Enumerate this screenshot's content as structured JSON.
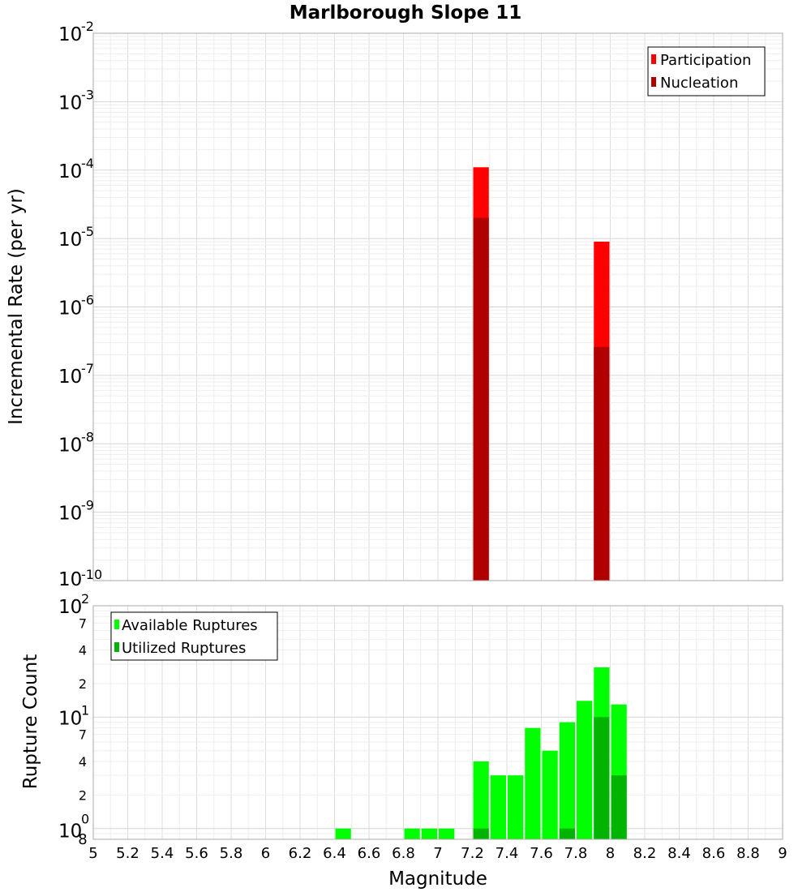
{
  "chart_data": [
    {
      "type": "bar",
      "title": "Marlborough Slope 11",
      "ylabel": "Incremental Rate (per yr)",
      "yscale": "log",
      "ylim": [
        1e-10,
        0.01
      ],
      "xlim": [
        5,
        9
      ],
      "y_ticks": [
        {
          "base": "10",
          "exp": "-2"
        },
        {
          "base": "10",
          "exp": "-3"
        },
        {
          "base": "10",
          "exp": "-4"
        },
        {
          "base": "10",
          "exp": "-5"
        },
        {
          "base": "10",
          "exp": "-6"
        },
        {
          "base": "10",
          "exp": "-7"
        },
        {
          "base": "10",
          "exp": "-8"
        },
        {
          "base": "10",
          "exp": "-9"
        },
        {
          "base": "10",
          "exp": "-10"
        }
      ],
      "grid": true,
      "legend_position": "top-right",
      "series": [
        {
          "name": "Participation",
          "color": "#ff0000",
          "points": [
            {
              "x": 7.25,
              "y": 0.00011
            },
            {
              "x": 7.95,
              "y": 9e-06
            }
          ]
        },
        {
          "name": "Nucleation",
          "color": "#b00000",
          "points": [
            {
              "x": 7.25,
              "y": 2e-05
            },
            {
              "x": 7.95,
              "y": 2.6e-07
            }
          ]
        }
      ]
    },
    {
      "type": "bar",
      "xlabel": "Magnitude",
      "ylabel": "Rupture Count",
      "yscale": "log",
      "ylim": [
        0.8,
        100
      ],
      "xlim": [
        5,
        9
      ],
      "x_ticks": [
        "5",
        "5.2",
        "5.4",
        "5.6",
        "5.8",
        "6",
        "6.2",
        "6.4",
        "6.6",
        "6.8",
        "7",
        "7.2",
        "7.4",
        "7.6",
        "7.8",
        "8",
        "8.2",
        "8.4",
        "8.6",
        "8.8",
        "9"
      ],
      "y_ticks": [
        {
          "base": "10",
          "exp": "2",
          "value": 100
        },
        {
          "base": "10",
          "exp": "1",
          "value": 10
        },
        {
          "base": "10",
          "exp": "0",
          "value": 1
        }
      ],
      "y_minor_ticks": [
        {
          "label": "7",
          "value": 70
        },
        {
          "label": "4",
          "value": 40
        },
        {
          "label": "2",
          "value": 20
        },
        {
          "label": "7",
          "value": 7
        },
        {
          "label": "4",
          "value": 4
        },
        {
          "label": "2",
          "value": 2
        },
        {
          "label": "8",
          "value": 0.8
        }
      ],
      "grid": true,
      "legend_position": "top-left",
      "series": [
        {
          "name": "Available Ruptures",
          "color": "#00ff00",
          "points": [
            {
              "x": 6.45,
              "y": 1
            },
            {
              "x": 6.85,
              "y": 1
            },
            {
              "x": 6.95,
              "y": 1
            },
            {
              "x": 7.05,
              "y": 1
            },
            {
              "x": 7.25,
              "y": 4
            },
            {
              "x": 7.35,
              "y": 3
            },
            {
              "x": 7.45,
              "y": 3
            },
            {
              "x": 7.55,
              "y": 8
            },
            {
              "x": 7.65,
              "y": 5
            },
            {
              "x": 7.75,
              "y": 9
            },
            {
              "x": 7.85,
              "y": 14
            },
            {
              "x": 7.95,
              "y": 28
            },
            {
              "x": 8.05,
              "y": 13
            }
          ]
        },
        {
          "name": "Utilized Ruptures",
          "color": "#00b400",
          "points": [
            {
              "x": 7.25,
              "y": 1
            },
            {
              "x": 7.75,
              "y": 1
            },
            {
              "x": 7.95,
              "y": 10
            },
            {
              "x": 8.05,
              "y": 3
            }
          ]
        }
      ]
    }
  ]
}
